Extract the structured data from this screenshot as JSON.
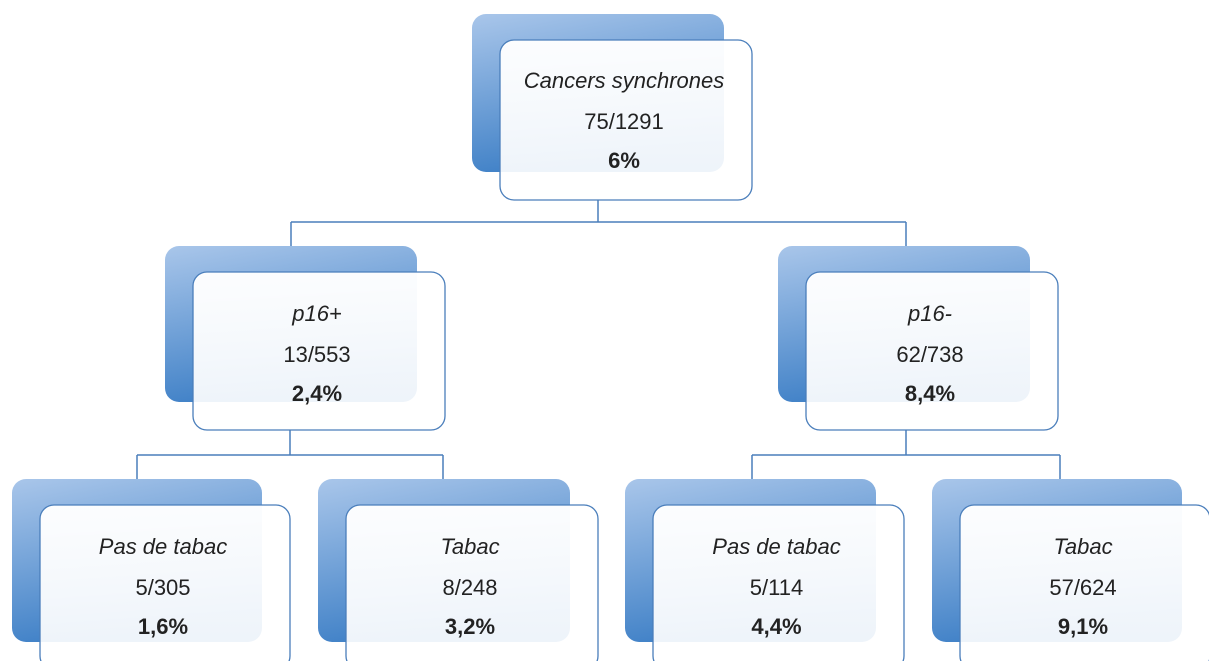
{
  "nodes": [
    {
      "label": "Cancers synchrones",
      "fraction": "75/1291",
      "percent": "6%"
    },
    {
      "label": "p16+",
      "fraction": "13/553",
      "percent": "2,4%"
    },
    {
      "label": "p16-",
      "fraction": "62/738",
      "percent": "8,4%"
    },
    {
      "label": "Pas de tabac",
      "fraction": "5/305",
      "percent": "1,6%"
    },
    {
      "label": "Tabac",
      "fraction": "8/248",
      "percent": "3,2%"
    },
    {
      "label": "Pas de tabac",
      "fraction": "5/114",
      "percent": "4,4%"
    },
    {
      "label": "Tabac",
      "fraction": "57/624",
      "percent": "9,1%"
    }
  ]
}
